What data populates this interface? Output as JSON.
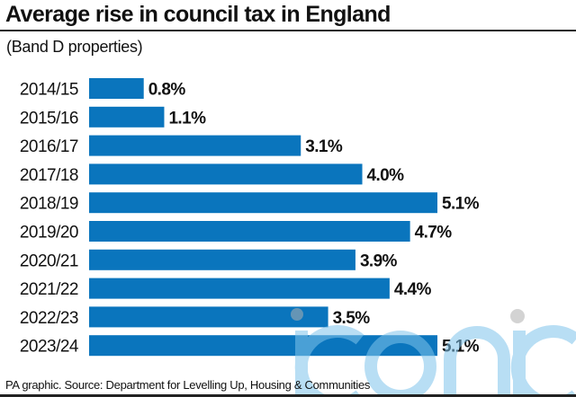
{
  "header": {
    "title": "Average rise in council tax in England",
    "subtitle": "(Band D properties)"
  },
  "footer": {
    "source": "PA graphic. Source: Department for Levelling Up, Housing & Communities"
  },
  "watermark": {
    "text": "iconic"
  },
  "colors": {
    "bar": "#0a75bd",
    "text": "#111111",
    "watermark": "#7fc4ec"
  },
  "chart_data": {
    "type": "bar",
    "orientation": "horizontal",
    "title": "Average rise in council tax in England",
    "subtitle": "(Band D properties)",
    "xlabel": "",
    "ylabel": "",
    "categories": [
      "2014/15",
      "2015/16",
      "2016/17",
      "2017/18",
      "2018/19",
      "2019/20",
      "2020/21",
      "2021/22",
      "2022/23",
      "2023/24"
    ],
    "values": [
      0.8,
      1.1,
      3.1,
      4.0,
      5.1,
      4.7,
      3.9,
      4.4,
      3.5,
      5.1
    ],
    "labels": [
      "0.8%",
      "1.1%",
      "3.1%",
      "4.0%",
      "5.1%",
      "4.7%",
      "3.9%",
      "4.4%",
      "3.5%",
      "5.1%"
    ],
    "unit": "%",
    "xlim": [
      0,
      5.1
    ],
    "grid": false,
    "legend": "none"
  }
}
